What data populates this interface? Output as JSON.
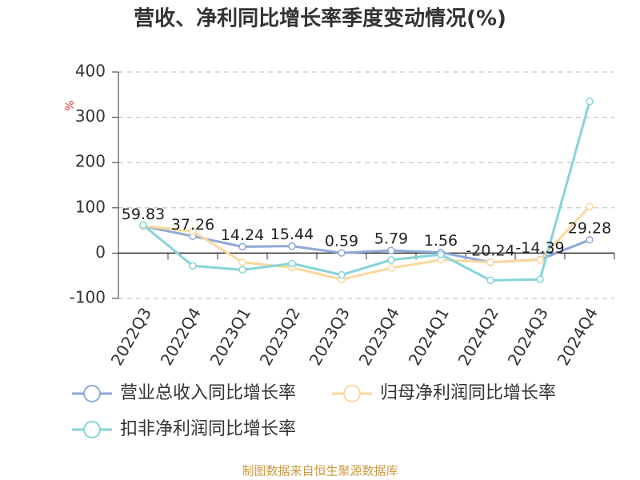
{
  "chart_data": {
    "type": "line",
    "title": "营收、净利同比增长率季度变动情况(%)",
    "y_label": "%",
    "categories": [
      "2022Q3",
      "2022Q4",
      "2023Q1",
      "2023Q2",
      "2023Q3",
      "2023Q4",
      "2024Q1",
      "2024Q2",
      "2024Q3",
      "2024Q4"
    ],
    "series": [
      {
        "name": "营业总收入同比增长率",
        "color": "#8fa8d8",
        "values": [
          59.83,
          37.26,
          14.24,
          15.44,
          0.59,
          5.79,
          1.56,
          -20.24,
          -14.39,
          29.28
        ],
        "show_labels": true
      },
      {
        "name": "归母净利润同比增长率",
        "color": "#fbd89b",
        "values": [
          60,
          48,
          -20,
          -32,
          -58,
          -33,
          -15,
          -20,
          -15,
          103
        ]
      },
      {
        "name": "扣非净利润同比增长率",
        "color": "#86d4d8",
        "values": [
          62,
          -28,
          -37,
          -23,
          -48,
          -15,
          -3,
          -60,
          -58,
          335
        ]
      }
    ],
    "ylim": [
      -100,
      400
    ],
    "yticks": [
      -100,
      0,
      100,
      200,
      300,
      400
    ],
    "grid": true,
    "source": "制图数据来自恒生聚源数据库"
  }
}
